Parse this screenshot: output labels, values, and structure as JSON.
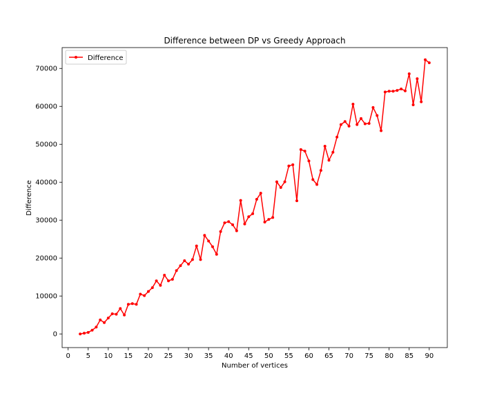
{
  "chart_data": {
    "type": "line",
    "title": "Difference between DP vs Greedy Approach",
    "xlabel": "Number of vertices",
    "ylabel": "Difference",
    "xlim": [
      -1.5,
      94.5
    ],
    "ylim": [
      -3600,
      75500
    ],
    "xticks": [
      0,
      5,
      10,
      15,
      20,
      25,
      30,
      35,
      40,
      45,
      50,
      55,
      60,
      65,
      70,
      75,
      80,
      85,
      90
    ],
    "yticks": [
      0,
      10000,
      20000,
      30000,
      40000,
      50000,
      60000,
      70000
    ],
    "grid": false,
    "legend": "top-left",
    "series": [
      {
        "name": "Difference",
        "color": "#ff0000",
        "marker": "circle",
        "x": [
          3,
          4,
          5,
          6,
          7,
          8,
          9,
          10,
          11,
          12,
          13,
          14,
          15,
          16,
          17,
          18,
          19,
          20,
          21,
          22,
          23,
          24,
          25,
          26,
          27,
          28,
          29,
          30,
          31,
          32,
          33,
          34,
          35,
          36,
          37,
          38,
          39,
          40,
          41,
          42,
          43,
          44,
          45,
          46,
          47,
          48,
          49,
          50,
          51,
          52,
          53,
          54,
          55,
          56,
          57,
          58,
          59,
          60,
          61,
          62,
          63,
          64,
          65,
          66,
          67,
          68,
          69,
          70,
          71,
          72,
          73,
          74,
          75,
          76,
          77,
          78,
          79,
          80,
          81,
          82,
          83,
          84,
          85,
          86,
          87,
          88,
          89,
          90
        ],
        "y": [
          0,
          200,
          400,
          1000,
          1800,
          3700,
          3000,
          4200,
          5300,
          5200,
          6700,
          5000,
          7800,
          8000,
          7800,
          10500,
          10100,
          11200,
          12200,
          14000,
          12800,
          15500,
          14000,
          14400,
          16700,
          18000,
          19300,
          18400,
          19600,
          23200,
          19600,
          26000,
          24500,
          23000,
          21000,
          27000,
          29300,
          29600,
          28800,
          27200,
          35200,
          29000,
          30900,
          31700,
          35500,
          37100,
          29500,
          30200,
          30700,
          40100,
          38600,
          40100,
          44300,
          44600,
          35100,
          48600,
          48200,
          45600,
          40700,
          39400,
          43100,
          49500,
          45800,
          47900,
          51900,
          55200,
          56000,
          54800,
          60600,
          55200,
          56800,
          55400,
          55500,
          59700,
          57600,
          53600,
          63800,
          64000,
          64000,
          64200,
          64600,
          64100,
          68600,
          60400,
          67300,
          61200,
          72300,
          71500
        ]
      }
    ]
  }
}
